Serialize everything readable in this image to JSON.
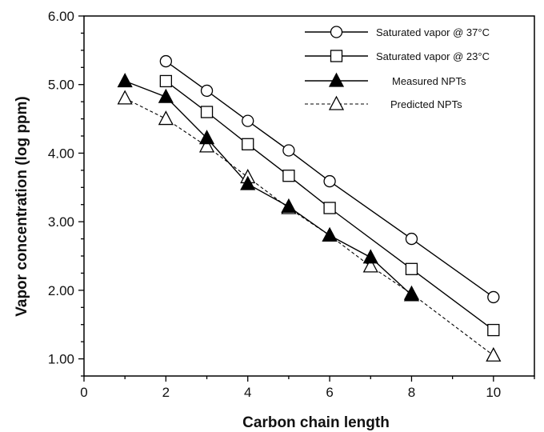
{
  "chart_data": {
    "type": "line",
    "xlabel": "Carbon chain length",
    "ylabel": "Vapor concentration  (log ppm)",
    "xlim": [
      0,
      11
    ],
    "ylim": [
      0.75,
      6.0
    ],
    "xticks": [
      0,
      2,
      4,
      6,
      8,
      10
    ],
    "xtick_labels": [
      "0",
      "2",
      "4",
      "6",
      "8",
      "10"
    ],
    "yticks": [
      1,
      2,
      3,
      4,
      5,
      6
    ],
    "ytick_labels": [
      "1.00",
      "2.00",
      "3.00",
      "4.00",
      "5.00",
      "6.00"
    ],
    "grid": false,
    "legend_position": "top-right",
    "series": [
      {
        "name": "Saturated vapor @ 37°C",
        "marker": "circle-open",
        "line": "solid",
        "x": [
          2,
          3,
          4,
          5,
          6,
          8,
          10
        ],
        "y": [
          5.34,
          4.91,
          4.47,
          4.04,
          3.59,
          2.75,
          1.9
        ]
      },
      {
        "name": "Saturated vapor @ 23°C",
        "marker": "square-open",
        "line": "solid",
        "x": [
          2,
          3,
          4,
          5,
          6,
          8,
          10
        ],
        "y": [
          5.05,
          4.6,
          4.13,
          3.67,
          3.2,
          2.31,
          1.42
        ]
      },
      {
        "name": "Measured NPTs",
        "marker": "triangle-filled",
        "line": "solid",
        "x": [
          1,
          2,
          3,
          4,
          5,
          6,
          7,
          8
        ],
        "y": [
          5.05,
          4.82,
          4.22,
          3.55,
          3.22,
          2.8,
          2.48,
          1.93
        ]
      },
      {
        "name": "Predicted NPTs",
        "marker": "triangle-open",
        "line": "dashed",
        "x": [
          1,
          2,
          3,
          4,
          5,
          6,
          7,
          8,
          10
        ],
        "y": [
          4.8,
          4.5,
          4.1,
          3.65,
          3.2,
          2.8,
          2.35,
          1.95,
          1.05
        ]
      }
    ]
  }
}
